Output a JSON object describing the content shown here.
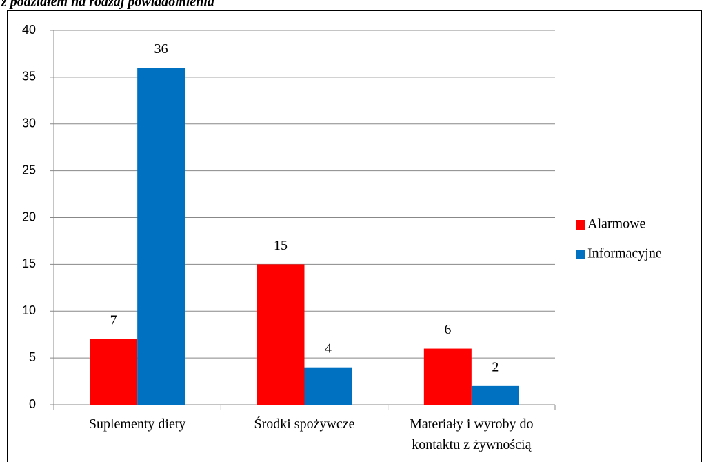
{
  "chart_data": {
    "type": "bar",
    "title": "z podziałem na rodzaj powiadomienia",
    "categories": [
      "Suplementy  diety",
      "Środki spożywcze",
      "Materiały i wyroby do kontaktu z żywnością"
    ],
    "series": [
      {
        "name": "Alarmowe",
        "color": "#ff0000",
        "values": [
          7,
          15,
          6
        ]
      },
      {
        "name": "Informacyjne",
        "color": "#0070c0",
        "values": [
          36,
          4,
          2
        ]
      }
    ],
    "ylim": [
      0,
      40
    ],
    "yticks": [
      0,
      5,
      10,
      15,
      20,
      25,
      30,
      35,
      40
    ],
    "grid": true,
    "legend": "right"
  }
}
